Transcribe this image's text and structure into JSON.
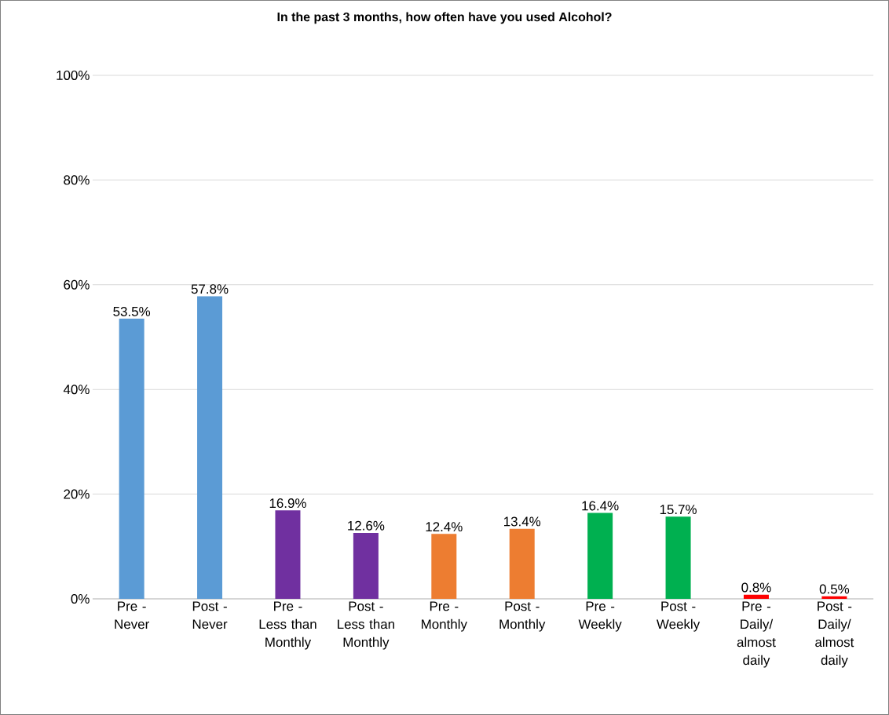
{
  "chart_data": {
    "type": "bar",
    "title": "In the past 3 months, how often have you used Alcohol?",
    "categories": [
      "Pre - Never",
      "Post - Never",
      "Pre - Less than Monthly",
      "Post - Less than Monthly",
      "Pre - Monthly",
      "Post - Monthly",
      "Pre - Weekly",
      "Post - Weekly",
      "Pre - Daily/ almost daily",
      "Post - Daily/ almost daily"
    ],
    "values": [
      53.5,
      57.8,
      16.9,
      12.6,
      12.4,
      13.4,
      16.4,
      15.7,
      0.8,
      0.5
    ],
    "colors": [
      "#5b9bd5",
      "#5b9bd5",
      "#7030a0",
      "#7030a0",
      "#ed7d31",
      "#ed7d31",
      "#00b050",
      "#00b050",
      "#ff0000",
      "#ff0000"
    ],
    "value_labels": [
      "53.5%",
      "57.8%",
      "16.9%",
      "12.6%",
      "12.4%",
      "13.4%",
      "16.4%",
      "15.7%",
      "0.8%",
      "0.5%"
    ],
    "ylim": [
      0,
      100
    ],
    "yticks": [
      {
        "value": 0,
        "label": "0%"
      },
      {
        "value": 20,
        "label": "20%"
      },
      {
        "value": 40,
        "label": "40%"
      },
      {
        "value": 60,
        "label": "60%"
      },
      {
        "value": 80,
        "label": "80%"
      },
      {
        "value": 100,
        "label": "100%"
      }
    ],
    "grid": "y"
  }
}
